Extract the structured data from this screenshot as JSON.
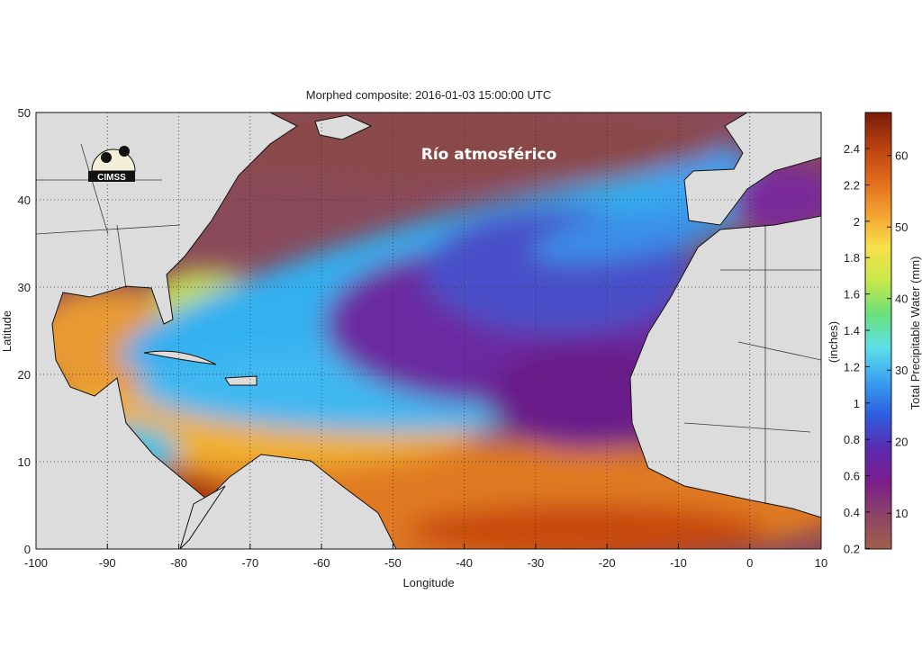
{
  "title": "Morphed composite: 2016-01-03 15:00:00 UTC",
  "annotation": "Río atmosférico",
  "logo": "CIMSS",
  "xlabel": "Longitude",
  "ylabel": "Latitude",
  "colorbar": {
    "left_label": "(inches)",
    "right_label": "Total Precipitable Water (mm)",
    "inches_ticks": [
      "0.2",
      "0.4",
      "0.6",
      "0.8",
      "1",
      "1.2",
      "1.4",
      "1.6",
      "1.8",
      "2",
      "2.2",
      "2.4"
    ],
    "mm_ticks": [
      "10",
      "20",
      "30",
      "40",
      "50",
      "60"
    ],
    "colors": [
      "#a0604c",
      "#8e4466",
      "#7a1e8a",
      "#5a2bb0",
      "#2d5fe0",
      "#3aa0f0",
      "#5ee0e8",
      "#6ae07a",
      "#c8e84a",
      "#f7e04a",
      "#f5a030",
      "#e06a1a",
      "#b8400f",
      "#7a1a0a"
    ]
  },
  "chart_data": {
    "type": "heatmap",
    "xlim": [
      -100,
      10
    ],
    "ylim": [
      0,
      50
    ],
    "x_ticks": [
      "-100",
      "-90",
      "-80",
      "-70",
      "-60",
      "-50",
      "-40",
      "-30",
      "-20",
      "-10",
      "0",
      "10"
    ],
    "y_ticks": [
      "0",
      "10",
      "20",
      "30",
      "40",
      "50"
    ],
    "grid": true,
    "colorbar_range_mm": [
      5,
      66
    ]
  }
}
